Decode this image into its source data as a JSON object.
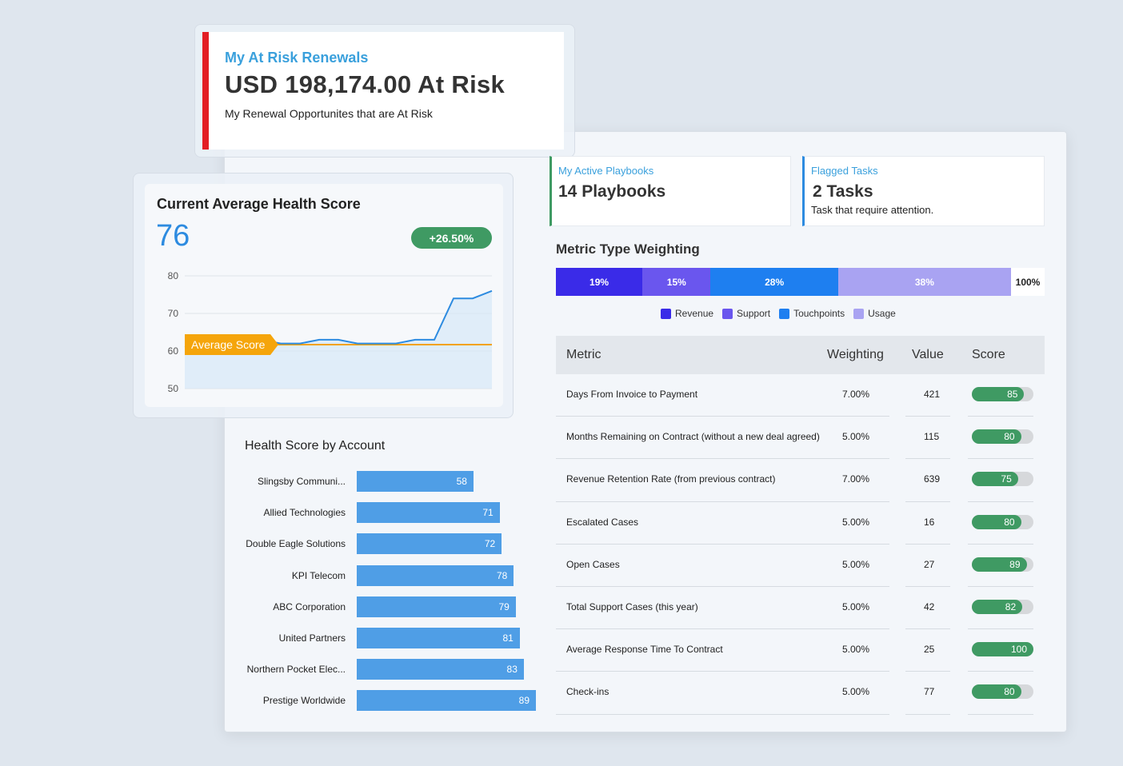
{
  "at_risk": {
    "title": "My At Risk Renewals",
    "amount": "USD 198,174.00 At Risk",
    "subtitle": "My Renewal Opportunites that are At Risk",
    "accent_color": "#e31e24"
  },
  "health": {
    "title": "Current Average Health Score",
    "value": "76",
    "badge": "+26.50%",
    "chart_data": {
      "type": "line",
      "ylim": [
        50,
        80
      ],
      "y_ticks": [
        "80",
        "70",
        "60",
        "50"
      ],
      "average_label": "Average Score",
      "average_value": 61.7,
      "series": [
        {
          "values": [
            61,
            62,
            62,
            63,
            63,
            62,
            62,
            63,
            63,
            62,
            62,
            62,
            63,
            63,
            74,
            74,
            76
          ]
        }
      ]
    }
  },
  "playbooks": {
    "label": "My Active Playbooks",
    "value": "14 Playbooks"
  },
  "tasks": {
    "label": "Flagged Tasks",
    "value": "2 Tasks",
    "subtitle": "Task that require attention."
  },
  "weighting": {
    "title": "Metric Type Weighting",
    "total": "100%",
    "segments": [
      {
        "name": "Revenue",
        "label": "19%",
        "value": 19,
        "color": "#3a2be8"
      },
      {
        "name": "Support",
        "label": "15%",
        "value": 15,
        "color": "#6a56ee"
      },
      {
        "name": "Touchpoints",
        "label": "28%",
        "value": 28,
        "color": "#1e7ff0"
      },
      {
        "name": "Usage",
        "label": "38%",
        "value": 38,
        "color": "#a9a3f2"
      }
    ]
  },
  "metrics": {
    "headers": {
      "metric": "Metric",
      "weighting": "Weighting",
      "value": "Value",
      "score": "Score"
    },
    "rows": [
      {
        "metric": "Days From Invoice to Payment",
        "weighting": "7.00%",
        "value": "421",
        "score": 85
      },
      {
        "metric": "Months Remaining on Contract (without a new deal agreed)",
        "weighting": "5.00%",
        "value": "115",
        "score": 80
      },
      {
        "metric": "Revenue Retention Rate (from previous contract)",
        "weighting": "7.00%",
        "value": "639",
        "score": 75
      },
      {
        "metric": "Escalated Cases",
        "weighting": "5.00%",
        "value": "16",
        "score": 80
      },
      {
        "metric": "Open Cases",
        "weighting": "5.00%",
        "value": "27",
        "score": 89
      },
      {
        "metric": "Total Support Cases (this year)",
        "weighting": "5.00%",
        "value": "42",
        "score": 82
      },
      {
        "metric": "Average Response Time To Contract",
        "weighting": "5.00%",
        "value": "25",
        "score": 100
      },
      {
        "metric": "Check-ins",
        "weighting": "5.00%",
        "value": "77",
        "score": 80
      }
    ]
  },
  "accounts": {
    "title": "Health Score by Account",
    "chart_data": {
      "type": "bar",
      "orientation": "horizontal",
      "categories": [
        "Slingsby Communi...",
        "Allied Technologies",
        "Double Eagle Solutions",
        "KPI Telecom",
        "ABC Corporation",
        "United Partners",
        "Northern Pocket Elec...",
        "Prestige Worldwide"
      ],
      "values": [
        58,
        71,
        72,
        78,
        79,
        81,
        83,
        89
      ],
      "color": "#4f9ee6"
    }
  }
}
